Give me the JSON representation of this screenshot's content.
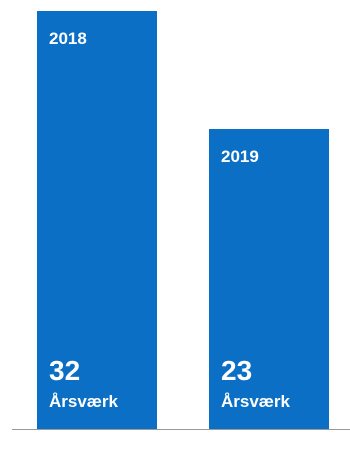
{
  "chart_data": {
    "type": "bar",
    "categories": [
      "2018",
      "2019"
    ],
    "values": [
      32,
      23
    ],
    "unit": "Årsværk",
    "colors": {
      "bar": "#0b6fc6",
      "text": "#ffffff",
      "baseline": "#9a9a9a"
    }
  }
}
